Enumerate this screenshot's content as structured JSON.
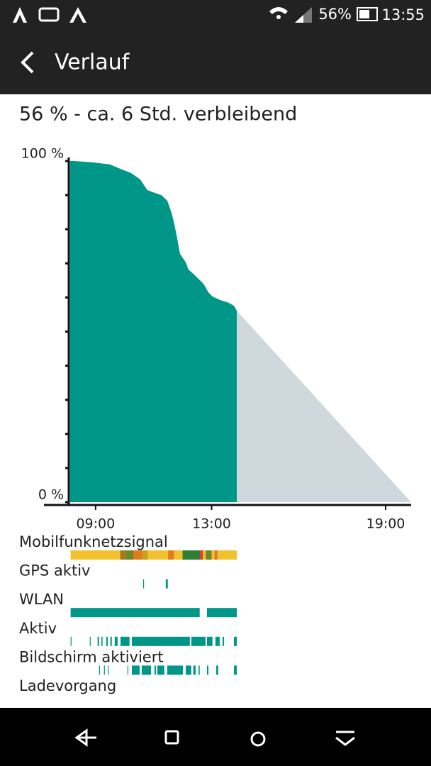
{
  "status_bar": {
    "battery": "56%",
    "time": "13:55"
  },
  "app_bar": {
    "title": "Verlauf"
  },
  "header": "56 % - ca. 6 Std. verbleibend",
  "chart_data": {
    "type": "area",
    "xlim": [
      8.1,
      19.88
    ],
    "ylim": [
      0,
      100
    ],
    "xticks": [
      {
        "value": 9,
        "label": "09:00"
      },
      {
        "value": 13,
        "label": "13:00"
      },
      {
        "value": 19,
        "label": "19:00"
      }
    ],
    "yticks": [
      {
        "value": 100,
        "label": "100 %"
      },
      {
        "value": 0,
        "label": "0 %"
      }
    ],
    "yminor_ticks": [
      10,
      20,
      30,
      40,
      50,
      60,
      70,
      80,
      90
    ],
    "series": [
      {
        "color": "#009688",
        "x": [
          8.12,
          8.27,
          8.88,
          9.49,
          9.86,
          10.22,
          10.54,
          10.78,
          10.96,
          11.27,
          11.47,
          11.62,
          11.71,
          11.81,
          11.91,
          12.11,
          12.2,
          12.4,
          12.72,
          12.89,
          13.03,
          13.28,
          13.57,
          13.77,
          13.87
        ],
        "values": [
          100,
          100,
          99.6,
          99,
          97.7,
          96.5,
          94.6,
          91.5,
          90.9,
          90,
          88.4,
          84.8,
          81.7,
          77.5,
          72.8,
          70.3,
          68.2,
          66.7,
          64,
          61.5,
          60.3,
          59.3,
          58.5,
          57.6,
          56.1
        ]
      },
      {
        "color": "#cfd8dc",
        "x": [
          13.87,
          19.88
        ],
        "values": [
          56.1,
          0
        ]
      }
    ],
    "tracks": [
      {
        "name": "Mobilfunknetzsignal",
        "color": "#f2c12e",
        "intervals": [
          [
            8.14,
            13.87
          ],
          [
            9.85,
            10.05
          ],
          [
            10.05,
            10.3
          ],
          [
            10.3,
            10.6
          ],
          [
            10.6,
            10.8
          ],
          [
            11.5,
            11.7
          ],
          [
            12.0,
            12.6
          ],
          [
            12.6,
            12.7
          ],
          [
            12.8,
            13.0
          ],
          [
            13.1,
            13.2
          ]
        ],
        "interval_colors": [
          "#f2c12e",
          "#a3781c",
          "#6a8a2a",
          "#e07b1e",
          "#c8a020",
          "#e07b1e",
          "#2e7d32",
          "#e53935",
          "#6a8a2a",
          "#e07b1e"
        ]
      },
      {
        "name": "GPS aktiv",
        "color": "#009688",
        "intervals": [
          [
            10.64,
            10.67
          ],
          [
            11.42,
            11.49
          ]
        ]
      },
      {
        "name": "WLAN",
        "color": "#009688",
        "intervals": [
          [
            8.14,
            12.59
          ],
          [
            12.84,
            13.87
          ]
        ]
      },
      {
        "name": "Aktiv",
        "color": "#009688",
        "intervals": [
          [
            8.14,
            8.17
          ],
          [
            8.8,
            8.83
          ],
          [
            9.07,
            9.12
          ],
          [
            9.2,
            9.24
          ],
          [
            9.37,
            9.42
          ],
          [
            9.51,
            9.56
          ],
          [
            9.66,
            9.76
          ],
          [
            9.86,
            10.17
          ],
          [
            10.25,
            12.25
          ],
          [
            12.3,
            12.79
          ],
          [
            12.84,
            13.03
          ],
          [
            13.13,
            13.28
          ],
          [
            13.38,
            13.43
          ],
          [
            13.77,
            13.87
          ]
        ]
      },
      {
        "name": "Bildschirm aktiviert",
        "color": "#009688",
        "intervals": [
          [
            9.12,
            9.15
          ],
          [
            9.29,
            9.32
          ],
          [
            9.42,
            9.44
          ],
          [
            10.1,
            10.12
          ],
          [
            10.25,
            10.52
          ],
          [
            10.59,
            10.91
          ],
          [
            11.03,
            11.08
          ],
          [
            11.13,
            11.37
          ],
          [
            11.47,
            12.01
          ],
          [
            12.11,
            12.3
          ],
          [
            12.37,
            12.45
          ],
          [
            12.55,
            12.59
          ],
          [
            12.84,
            12.89
          ],
          [
            13.16,
            13.23
          ],
          [
            13.77,
            13.87
          ]
        ]
      },
      {
        "name": "Ladevorgang",
        "color": "#009688",
        "intervals": []
      }
    ]
  }
}
